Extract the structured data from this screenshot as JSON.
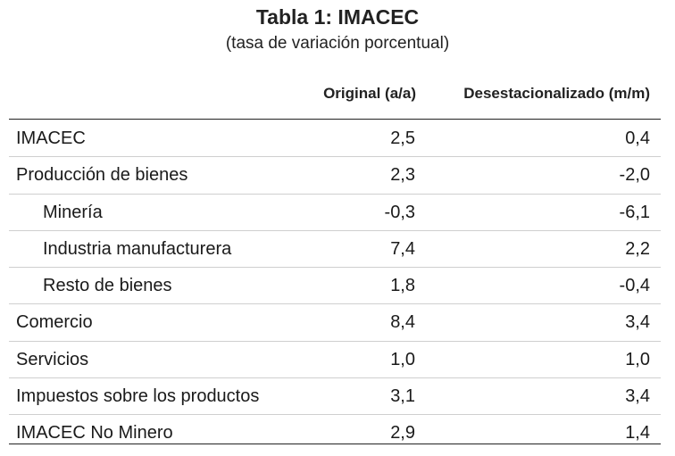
{
  "table": {
    "title": "Tabla 1:  IMACEC",
    "subtitle": "(tasa de variación porcentual)",
    "columns": [
      "Original (a/a)",
      "Desestacionalizado (m/m)"
    ],
    "rows": [
      {
        "label": "IMACEC",
        "original": "2,5",
        "desest": "0,4"
      },
      {
        "label": "Producción de bienes",
        "original": "2,3",
        "desest": "-2,0"
      },
      {
        "label": "Minería",
        "original": "-0,3",
        "desest": "-6,1"
      },
      {
        "label": "Industria manufacturera",
        "original": "7,4",
        "desest": "2,2"
      },
      {
        "label": "Resto de bienes",
        "original": "1,8",
        "desest": "-0,4"
      },
      {
        "label": "Comercio",
        "original": "8,4",
        "desest": "3,4"
      },
      {
        "label": "Servicios",
        "original": "1,0",
        "desest": "1,0"
      },
      {
        "label": "Impuestos sobre los productos",
        "original": "3,1",
        "desest": "3,4"
      },
      {
        "label": "IMACEC No Minero",
        "original": "2,9",
        "desest": "1,4"
      }
    ]
  }
}
